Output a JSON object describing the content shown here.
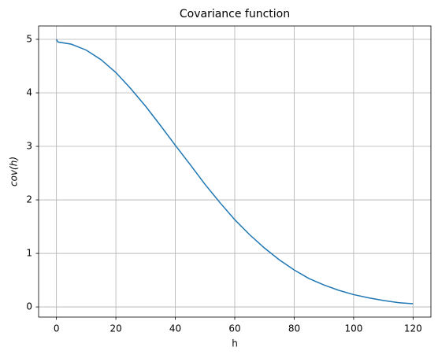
{
  "chart_data": {
    "type": "line",
    "title": "Covariance function",
    "x_label": "h",
    "y_label": "cov(h)",
    "x": [
      0,
      0.5,
      5,
      10,
      15,
      20,
      25,
      30,
      35,
      40,
      45,
      50,
      55,
      60,
      65,
      70,
      75,
      80,
      85,
      90,
      95,
      100,
      105,
      110,
      115,
      120
    ],
    "values": [
      5.0,
      4.95,
      4.91,
      4.8,
      4.62,
      4.38,
      4.08,
      3.75,
      3.39,
      3.02,
      2.66,
      2.29,
      1.95,
      1.63,
      1.35,
      1.1,
      0.88,
      0.69,
      0.53,
      0.41,
      0.31,
      0.23,
      0.17,
      0.12,
      0.08,
      0.06
    ],
    "color": "#1f77b4",
    "xlim": [
      -6,
      126
    ],
    "ylim": [
      -0.19,
      5.25
    ],
    "xticks": [
      0,
      20,
      40,
      60,
      80,
      100,
      120
    ],
    "yticks": [
      0,
      1,
      2,
      3,
      4,
      5
    ],
    "grid": true
  }
}
